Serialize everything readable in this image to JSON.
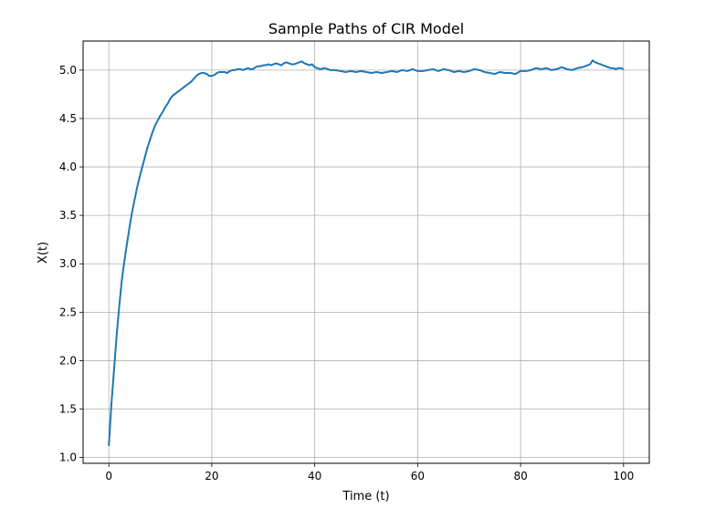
{
  "chart_data": {
    "type": "line",
    "title": "Sample Paths of CIR Model",
    "xlabel": "Time (t)",
    "ylabel": "X(t)",
    "xlim": [
      -5,
      105
    ],
    "ylim": [
      0.94,
      5.3
    ],
    "xticks": [
      0,
      20,
      40,
      60,
      80,
      100
    ],
    "xtick_labels": [
      "0",
      "20",
      "40",
      "60",
      "80",
      "100"
    ],
    "yticks": [
      1.0,
      1.5,
      2.0,
      2.5,
      3.0,
      3.5,
      4.0,
      4.5,
      5.0
    ],
    "ytick_labels": [
      "1.0",
      "1.5",
      "2.0",
      "2.5",
      "3.0",
      "3.5",
      "4.0",
      "4.5",
      "5.0"
    ],
    "grid": true,
    "line_color": "#1f77b4",
    "series": [
      {
        "x": [
          0,
          0.5,
          1,
          1.5,
          2,
          2.5,
          3,
          3.5,
          4,
          4.5,
          5,
          5.5,
          6,
          6.5,
          7,
          7.5,
          8,
          8.5,
          9,
          9.5,
          10,
          10.5,
          11,
          11.5,
          12,
          12.5,
          13,
          13.5,
          14,
          14.5,
          15,
          15.5,
          16,
          16.5,
          17,
          17.5,
          18,
          18.5,
          19,
          19.5,
          20,
          20.5,
          21,
          21.5,
          22,
          22.5,
          23,
          23.5,
          24,
          24.5,
          25,
          25.5,
          26,
          26.5,
          27,
          27.5,
          28,
          28.5,
          29,
          29.5,
          30,
          30.5,
          31,
          31.5,
          32,
          32.5,
          33,
          33.5,
          34,
          34.5,
          35,
          35.5,
          36,
          36.5,
          37,
          37.5,
          38,
          38.5,
          39,
          39.5,
          40,
          41,
          42,
          43,
          44,
          45,
          46,
          47,
          48,
          49,
          50,
          51,
          52,
          53,
          54,
          55,
          56,
          57,
          58,
          59,
          60,
          61,
          62,
          63,
          64,
          65,
          66,
          67,
          68,
          69,
          70,
          71,
          72,
          73,
          74,
          75,
          76,
          77,
          78,
          79,
          80,
          81,
          82,
          83,
          84,
          85,
          86,
          87,
          88,
          89,
          90,
          91,
          92,
          93,
          93.5,
          94,
          94.5,
          95,
          95.5,
          96,
          96.5,
          97,
          97.5,
          98,
          98.5,
          99,
          99.5,
          100
        ],
        "y": [
          1.12,
          1.55,
          1.9,
          2.25,
          2.55,
          2.82,
          3.02,
          3.2,
          3.37,
          3.53,
          3.66,
          3.79,
          3.9,
          4.0,
          4.1,
          4.2,
          4.28,
          4.36,
          4.43,
          4.48,
          4.53,
          4.57,
          4.62,
          4.66,
          4.71,
          4.74,
          4.76,
          4.78,
          4.8,
          4.82,
          4.84,
          4.86,
          4.88,
          4.91,
          4.94,
          4.96,
          4.97,
          4.97,
          4.96,
          4.94,
          4.94,
          4.95,
          4.97,
          4.98,
          4.98,
          4.98,
          4.97,
          4.99,
          5.0,
          5.0,
          5.01,
          5.01,
          5.0,
          5.01,
          5.02,
          5.01,
          5.01,
          5.03,
          5.04,
          5.04,
          5.05,
          5.05,
          5.06,
          5.05,
          5.06,
          5.07,
          5.06,
          5.05,
          5.07,
          5.08,
          5.07,
          5.06,
          5.06,
          5.07,
          5.08,
          5.09,
          5.07,
          5.06,
          5.05,
          5.06,
          5.03,
          5.01,
          5.02,
          5.0,
          5.0,
          4.99,
          4.98,
          4.99,
          4.98,
          4.99,
          4.98,
          4.97,
          4.98,
          4.97,
          4.98,
          4.99,
          4.98,
          5.0,
          4.99,
          5.01,
          4.99,
          4.99,
          5.0,
          5.01,
          4.99,
          5.01,
          5.0,
          4.98,
          4.99,
          4.98,
          4.99,
          5.01,
          5.0,
          4.98,
          4.97,
          4.96,
          4.98,
          4.97,
          4.97,
          4.96,
          4.99,
          4.99,
          5.0,
          5.02,
          5.01,
          5.02,
          5.0,
          5.01,
          5.03,
          5.01,
          5.0,
          5.02,
          5.03,
          5.05,
          5.06,
          5.1,
          5.08,
          5.07,
          5.06,
          5.05,
          5.04,
          5.03,
          5.02,
          5.02,
          5.01,
          5.02,
          5.02,
          5.01
        ]
      }
    ]
  }
}
